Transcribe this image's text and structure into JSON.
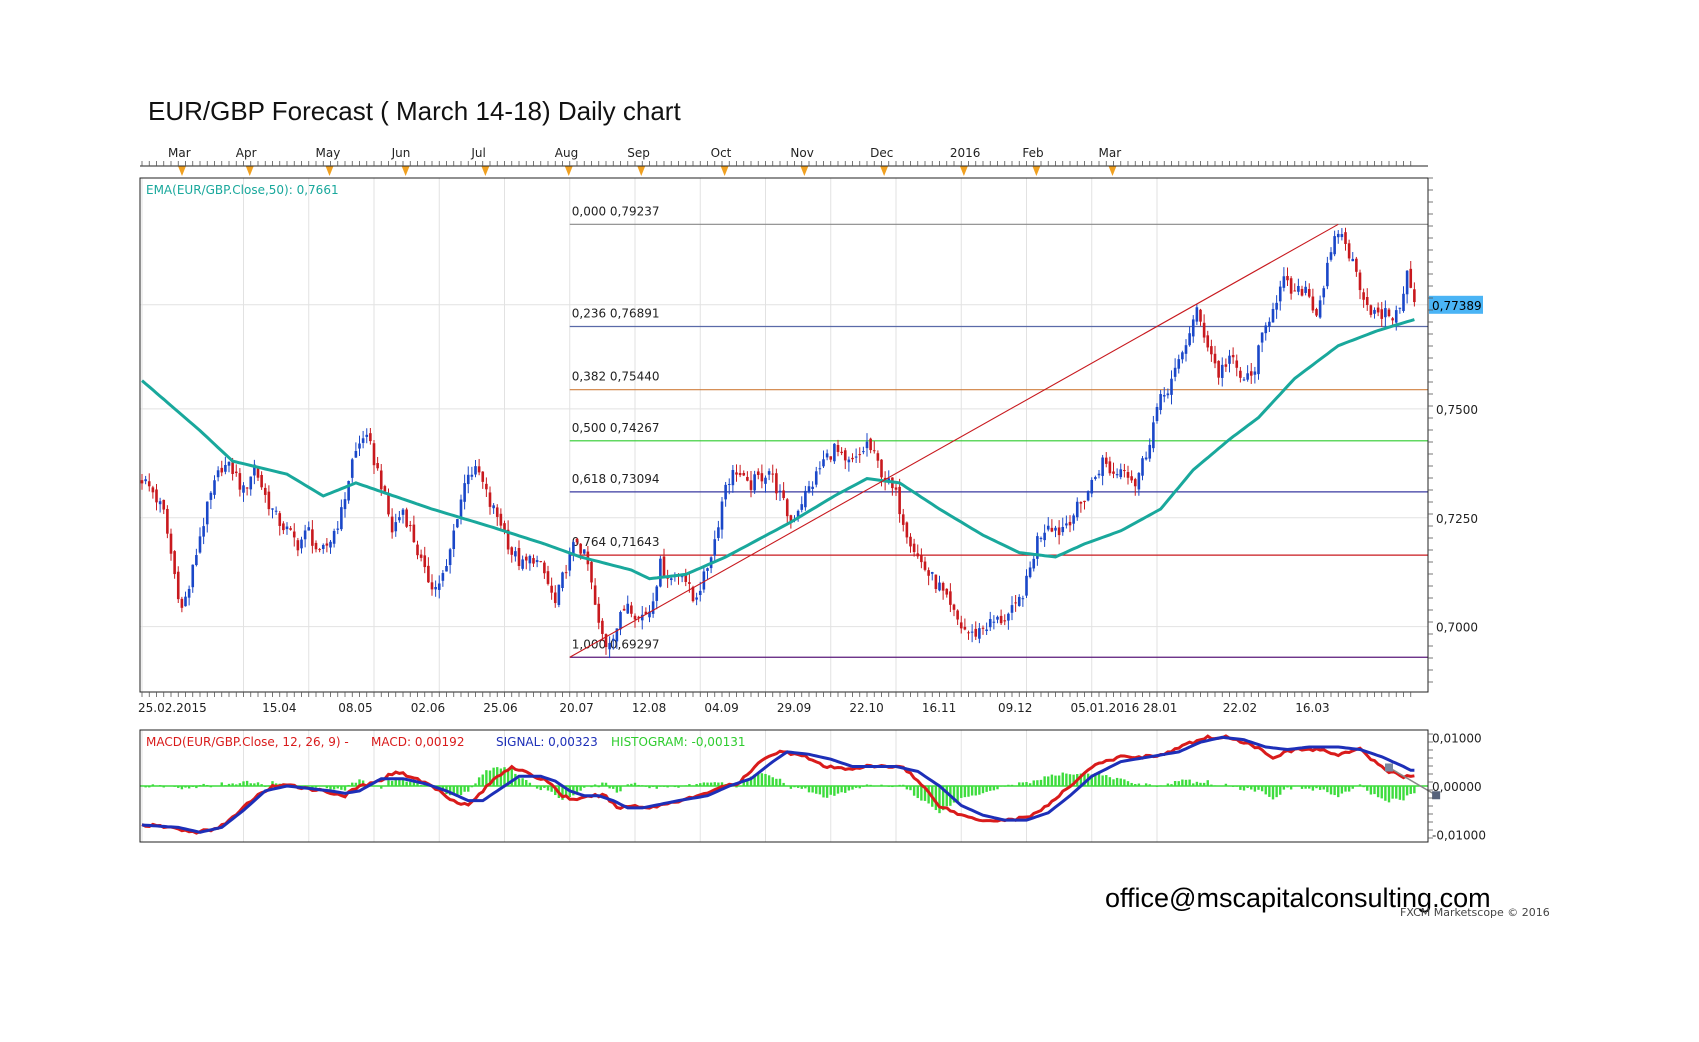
{
  "title": "EUR/GBP Forecast ( March 14-18) Daily chart",
  "watermark": "office@mscapitalconsulting.com",
  "credit": "FXCM Marketscope © 2016",
  "price_tag": "0,77389",
  "colors": {
    "candle_up": "#1a47c8",
    "candle_down": "#c8191e",
    "ema": "#19a89c",
    "macd": "#d91b1b",
    "signal": "#1d2fb8",
    "histogram": "#3ddc3d",
    "trendline": "#c8191e",
    "price_tag_bg": "#4ab4f5"
  },
  "chart_data": [
    {
      "type": "candlestick",
      "series_label": "EMA(EUR/GBP.Close,50): 0,7661",
      "month_labels": [
        "Mar",
        "Apr",
        "May",
        "Jun",
        "Jul",
        "Aug",
        "Sep",
        "Oct",
        "Nov",
        "Dec",
        "2016",
        "Feb",
        "Mar"
      ],
      "date_labels": [
        "25.02.2015",
        "15.04",
        "08.05",
        "02.06",
        "25.06",
        "20.07",
        "12.08",
        "04.09",
        "29.09",
        "22.10",
        "16.11",
        "09.12",
        "05.01.2016",
        "28.01",
        "22.02",
        "16.03"
      ],
      "y_ticks": [
        "0,7500",
        "0,7250",
        "0,7000"
      ],
      "ylim": [
        0.685,
        0.803
      ],
      "fibonacci": [
        {
          "level": "0,000",
          "price": 0.79237,
          "label": "0,000 0,79237",
          "color": "#888888"
        },
        {
          "level": "0,236",
          "price": 0.76891,
          "label": "0,236 0,76891",
          "color": "#5a6aa8"
        },
        {
          "level": "0,382",
          "price": 0.7544,
          "label": "0,382 0,75440",
          "color": "#d08040"
        },
        {
          "level": "0,500",
          "price": 0.74267,
          "label": "0,500 0,74267",
          "color": "#2ecc2e"
        },
        {
          "level": "0,618",
          "price": 0.73094,
          "label": "0,618 0,73094",
          "color": "#3a3aa0"
        },
        {
          "level": "0,764",
          "price": 0.71643,
          "label": "0,764 0,71643",
          "color": "#c8191e"
        },
        {
          "level": "1,000",
          "price": 0.69297,
          "label": "1,000 0,69297",
          "color": "#5a1a7a"
        }
      ],
      "close_anchors": [
        [
          0,
          0.734
        ],
        [
          3,
          0.731
        ],
        [
          6,
          0.726
        ],
        [
          9,
          0.712
        ],
        [
          11,
          0.704
        ],
        [
          13,
          0.709
        ],
        [
          16,
          0.721
        ],
        [
          19,
          0.73
        ],
        [
          22,
          0.737
        ],
        [
          25,
          0.736
        ],
        [
          28,
          0.731
        ],
        [
          31,
          0.737
        ],
        [
          34,
          0.73
        ],
        [
          37,
          0.725
        ],
        [
          40,
          0.722
        ],
        [
          43,
          0.719
        ],
        [
          46,
          0.722
        ],
        [
          49,
          0.716
        ],
        [
          52,
          0.72
        ],
        [
          55,
          0.726
        ],
        [
          58,
          0.738
        ],
        [
          61,
          0.744
        ],
        [
          63,
          0.741
        ],
        [
          66,
          0.733
        ],
        [
          69,
          0.722
        ],
        [
          72,
          0.727
        ],
        [
          75,
          0.72
        ],
        [
          78,
          0.712
        ],
        [
          81,
          0.709
        ],
        [
          84,
          0.713
        ],
        [
          87,
          0.726
        ],
        [
          90,
          0.736
        ],
        [
          93,
          0.735
        ],
        [
          96,
          0.728
        ],
        [
          99,
          0.724
        ],
        [
          102,
          0.717
        ],
        [
          105,
          0.714
        ],
        [
          108,
          0.716
        ],
        [
          111,
          0.712
        ],
        [
          114,
          0.705
        ],
        [
          117,
          0.714
        ],
        [
          120,
          0.72
        ],
        [
          123,
          0.714
        ],
        [
          126,
          0.7
        ],
        [
          128,
          0.696
        ],
        [
          131,
          0.7
        ],
        [
          134,
          0.706
        ],
        [
          137,
          0.702
        ],
        [
          140,
          0.704
        ],
        [
          143,
          0.714
        ],
        [
          146,
          0.711
        ],
        [
          149,
          0.713
        ],
        [
          152,
          0.706
        ],
        [
          155,
          0.711
        ],
        [
          158,
          0.72
        ],
        [
          161,
          0.733
        ],
        [
          164,
          0.736
        ],
        [
          167,
          0.732
        ],
        [
          170,
          0.734
        ],
        [
          173,
          0.736
        ],
        [
          176,
          0.73
        ],
        [
          179,
          0.724
        ],
        [
          182,
          0.729
        ],
        [
          185,
          0.733
        ],
        [
          188,
          0.738
        ],
        [
          191,
          0.741
        ],
        [
          194,
          0.737
        ],
        [
          197,
          0.738
        ],
        [
          200,
          0.742
        ],
        [
          202,
          0.739
        ],
        [
          205,
          0.734
        ],
        [
          208,
          0.73
        ],
        [
          211,
          0.722
        ],
        [
          214,
          0.716
        ],
        [
          217,
          0.712
        ],
        [
          220,
          0.709
        ],
        [
          223,
          0.704
        ],
        [
          226,
          0.7
        ],
        [
          229,
          0.698
        ],
        [
          232,
          0.7
        ],
        [
          235,
          0.701
        ],
        [
          238,
          0.702
        ],
        [
          241,
          0.704
        ],
        [
          244,
          0.71
        ],
        [
          247,
          0.72
        ],
        [
          250,
          0.724
        ],
        [
          253,
          0.722
        ],
        [
          256,
          0.725
        ],
        [
          259,
          0.728
        ],
        [
          262,
          0.733
        ],
        [
          265,
          0.738
        ],
        [
          268,
          0.735
        ],
        [
          271,
          0.737
        ],
        [
          274,
          0.733
        ],
        [
          277,
          0.74
        ],
        [
          280,
          0.75
        ],
        [
          283,
          0.755
        ],
        [
          286,
          0.76
        ],
        [
          289,
          0.768
        ],
        [
          291,
          0.772
        ],
        [
          294,
          0.765
        ],
        [
          297,
          0.758
        ],
        [
          300,
          0.762
        ],
        [
          303,
          0.757
        ],
        [
          306,
          0.757
        ],
        [
          309,
          0.766
        ],
        [
          312,
          0.774
        ],
        [
          315,
          0.779
        ],
        [
          318,
          0.776
        ],
        [
          321,
          0.778
        ],
        [
          324,
          0.772
        ],
        [
          327,
          0.782
        ],
        [
          330,
          0.791
        ],
        [
          332,
          0.788
        ],
        [
          335,
          0.781
        ],
        [
          338,
          0.774
        ],
        [
          341,
          0.771
        ],
        [
          344,
          0.772
        ],
        [
          346,
          0.771
        ],
        [
          349,
          0.781
        ],
        [
          351,
          0.77389
        ]
      ],
      "ema_anchors": [
        [
          0,
          0.7565
        ],
        [
          16,
          0.745
        ],
        [
          25,
          0.738
        ],
        [
          40,
          0.735
        ],
        [
          50,
          0.73
        ],
        [
          59,
          0.733
        ],
        [
          66,
          0.731
        ],
        [
          80,
          0.727
        ],
        [
          96,
          0.723
        ],
        [
          111,
          0.719
        ],
        [
          121,
          0.716
        ],
        [
          135,
          0.713
        ],
        [
          140,
          0.711
        ],
        [
          150,
          0.712
        ],
        [
          161,
          0.716
        ],
        [
          179,
          0.724
        ],
        [
          191,
          0.73
        ],
        [
          200,
          0.734
        ],
        [
          209,
          0.733
        ],
        [
          220,
          0.727
        ],
        [
          232,
          0.721
        ],
        [
          242,
          0.717
        ],
        [
          252,
          0.716
        ],
        [
          260,
          0.719
        ],
        [
          270,
          0.722
        ],
        [
          281,
          0.727
        ],
        [
          290,
          0.736
        ],
        [
          300,
          0.743
        ],
        [
          308,
          0.748
        ],
        [
          318,
          0.757
        ],
        [
          330,
          0.7645
        ],
        [
          341,
          0.768
        ],
        [
          351,
          0.7705
        ]
      ]
    },
    {
      "type": "line",
      "series_label": "MACD(EUR/GBP.Close, 12, 26, 9) - MACD: 0,00192 SIGNAL: 0,00323 HISTOGRAM: -0,00131",
      "legend": {
        "main": "MACD(EUR/GBP.Close, 12, 26, 9) - ",
        "macd": "MACD: 0,00192",
        "signal": "SIGNAL: 0,00323",
        "histogram": "HISTOGRAM: -0,00131"
      },
      "y_ticks": [
        "0,01000",
        "0,00000",
        "-0,01000"
      ],
      "ylim": [
        -0.0115,
        0.0115
      ],
      "macd_anchors": [
        [
          0,
          -0.008
        ],
        [
          8,
          -0.0085
        ],
        [
          14,
          -0.0095
        ],
        [
          20,
          -0.009
        ],
        [
          26,
          -0.006
        ],
        [
          30,
          -0.003
        ],
        [
          36,
          0.0
        ],
        [
          42,
          0.0
        ],
        [
          50,
          -0.001
        ],
        [
          56,
          -0.002
        ],
        [
          60,
          0.0
        ],
        [
          64,
          0.0005
        ],
        [
          70,
          0.003
        ],
        [
          74,
          0.002
        ],
        [
          80,
          0.0
        ],
        [
          86,
          -0.003
        ],
        [
          90,
          -0.004
        ],
        [
          94,
          -0.001
        ],
        [
          98,
          0.002
        ],
        [
          102,
          0.004
        ],
        [
          108,
          0.002
        ],
        [
          112,
          0.001
        ],
        [
          116,
          -0.002
        ],
        [
          120,
          -0.003
        ],
        [
          124,
          -0.002
        ],
        [
          128,
          -0.002
        ],
        [
          131,
          -0.0045
        ],
        [
          136,
          -0.004
        ],
        [
          140,
          -0.0045
        ],
        [
          148,
          -0.003
        ],
        [
          154,
          -0.002
        ],
        [
          160,
          0.0
        ],
        [
          164,
          0.0002
        ],
        [
          168,
          0.003
        ],
        [
          172,
          0.006
        ],
        [
          176,
          0.007
        ],
        [
          182,
          0.0065
        ],
        [
          188,
          0.004
        ],
        [
          194,
          0.0035
        ],
        [
          200,
          0.004
        ],
        [
          204,
          0.004
        ],
        [
          210,
          0.004
        ],
        [
          216,
          -0.0005
        ],
        [
          220,
          -0.004
        ],
        [
          226,
          -0.006
        ],
        [
          232,
          -0.007
        ],
        [
          238,
          -0.007
        ],
        [
          244,
          -0.0065
        ],
        [
          250,
          -0.004
        ],
        [
          256,
          0.0
        ],
        [
          262,
          0.004
        ],
        [
          270,
          0.006
        ],
        [
          276,
          0.006
        ],
        [
          282,
          0.0065
        ],
        [
          288,
          0.0085
        ],
        [
          294,
          0.01
        ],
        [
          300,
          0.01
        ],
        [
          306,
          0.0085
        ],
        [
          312,
          0.006
        ],
        [
          318,
          0.0075
        ],
        [
          324,
          0.0075
        ],
        [
          330,
          0.0065
        ],
        [
          336,
          0.0075
        ],
        [
          340,
          0.005
        ],
        [
          344,
          0.003
        ],
        [
          348,
          0.002
        ],
        [
          350,
          0.00192
        ]
      ],
      "signal_anchors": [
        [
          0,
          -0.008
        ],
        [
          10,
          -0.0085
        ],
        [
          16,
          -0.0095
        ],
        [
          22,
          -0.0085
        ],
        [
          28,
          -0.005
        ],
        [
          34,
          -0.001
        ],
        [
          40,
          0.0
        ],
        [
          46,
          -0.0005
        ],
        [
          52,
          -0.001
        ],
        [
          56,
          -0.0015
        ],
        [
          60,
          -0.001
        ],
        [
          66,
          0.0015
        ],
        [
          72,
          0.0015
        ],
        [
          78,
          0.0005
        ],
        [
          84,
          -0.001
        ],
        [
          90,
          -0.003
        ],
        [
          94,
          -0.003
        ],
        [
          100,
          0.0
        ],
        [
          104,
          0.002
        ],
        [
          110,
          0.002
        ],
        [
          114,
          0.001
        ],
        [
          118,
          -0.001
        ],
        [
          122,
          -0.002
        ],
        [
          126,
          -0.002
        ],
        [
          130,
          -0.003
        ],
        [
          134,
          -0.0045
        ],
        [
          138,
          -0.0045
        ],
        [
          148,
          -0.003
        ],
        [
          156,
          -0.002
        ],
        [
          162,
          0.0
        ],
        [
          168,
          0.0015
        ],
        [
          174,
          0.005
        ],
        [
          178,
          0.007
        ],
        [
          184,
          0.0065
        ],
        [
          190,
          0.0055
        ],
        [
          196,
          0.004
        ],
        [
          202,
          0.004
        ],
        [
          208,
          0.004
        ],
        [
          214,
          0.003
        ],
        [
          220,
          0.0
        ],
        [
          226,
          -0.004
        ],
        [
          232,
          -0.006
        ],
        [
          238,
          -0.007
        ],
        [
          244,
          -0.007
        ],
        [
          250,
          -0.0055
        ],
        [
          256,
          -0.002
        ],
        [
          262,
          0.002
        ],
        [
          270,
          0.005
        ],
        [
          278,
          0.006
        ],
        [
          286,
          0.007
        ],
        [
          292,
          0.009
        ],
        [
          298,
          0.01
        ],
        [
          304,
          0.0095
        ],
        [
          310,
          0.008
        ],
        [
          316,
          0.0075
        ],
        [
          322,
          0.008
        ],
        [
          330,
          0.008
        ],
        [
          336,
          0.0075
        ],
        [
          342,
          0.006
        ],
        [
          348,
          0.004
        ],
        [
          350,
          0.00323
        ]
      ]
    }
  ]
}
